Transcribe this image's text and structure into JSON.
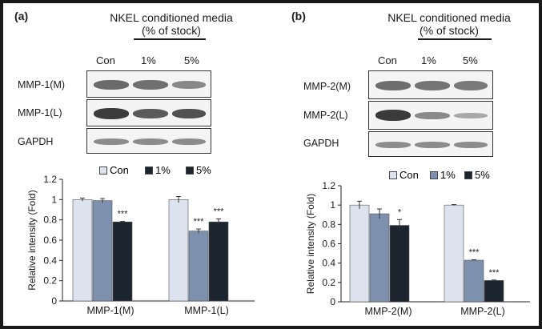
{
  "panels": [
    {
      "label": "(a)",
      "condition_title": "NKEL conditioned media",
      "condition_subtitle": "(% of stock)",
      "lanes": [
        "Con",
        "1%",
        "5%"
      ],
      "blot_rows": [
        "MMP-1(M)",
        "MMP-1(L)",
        "GAPDH"
      ]
    },
    {
      "label": "(b)",
      "condition_title": "NKEL conditioned media",
      "condition_subtitle": "(% of stock)",
      "lanes": [
        "Con",
        "1%",
        "5%"
      ],
      "blot_rows": [
        "MMP-2(M)",
        "MMP-2(L)",
        "GAPDH"
      ]
    }
  ],
  "colors": {
    "Con": "#dde3ee",
    "1%": "#7d90ad",
    "5%": "#1c2430"
  },
  "chart_data": [
    {
      "type": "bar",
      "categories": [
        "MMP-1(M)",
        "MMP-1(L)"
      ],
      "series": [
        {
          "name": "Con",
          "values": [
            1.0,
            1.0
          ],
          "errors": [
            0.015,
            0.03
          ],
          "sig": [
            "",
            ""
          ]
        },
        {
          "name": "1%",
          "values": [
            0.99,
            0.69
          ],
          "errors": [
            0.02,
            0.02
          ],
          "sig": [
            "",
            "***"
          ]
        },
        {
          "name": "5%",
          "values": [
            0.78,
            0.78
          ],
          "errors": [
            0.005,
            0.03
          ],
          "sig": [
            "***",
            "***"
          ]
        }
      ],
      "xlabel": "",
      "ylabel": "Relative intensity (Fold)",
      "ylim": [
        0,
        1.2
      ],
      "yticks": [
        "0",
        "0.2",
        "0.4",
        "0.6",
        "0.8",
        "1",
        "1.2"
      ],
      "legend": "top"
    },
    {
      "type": "bar",
      "categories": [
        "MMP-2(M)",
        "MMP-2(L)"
      ],
      "series": [
        {
          "name": "Con",
          "values": [
            1.0,
            1.0
          ],
          "errors": [
            0.04,
            0.005
          ],
          "sig": [
            "",
            ""
          ]
        },
        {
          "name": "1%",
          "values": [
            0.91,
            0.43
          ],
          "errors": [
            0.05,
            0.005
          ],
          "sig": [
            "",
            "***"
          ]
        },
        {
          "name": "5%",
          "values": [
            0.79,
            0.22
          ],
          "errors": [
            0.06,
            0.005
          ],
          "sig": [
            "*",
            "***"
          ]
        }
      ],
      "xlabel": "",
      "ylabel": "Relative intensity (Fold)",
      "ylim": [
        0,
        1.2
      ],
      "yticks": [
        "0",
        "0.2",
        "0.4",
        "0.6",
        "0.8",
        "1",
        "1.2"
      ],
      "legend": "top"
    }
  ]
}
